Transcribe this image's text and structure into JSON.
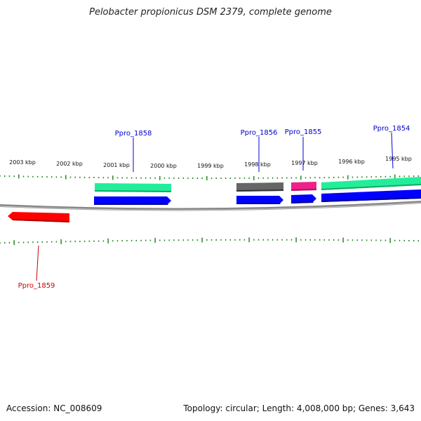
{
  "title": "Pelobacter propionicus DSM 2379, complete genome",
  "footer": {
    "accession": "Accession: NC_008609",
    "summary": "Topology: circular; Length: 4,008,000 bp; Genes: 3,643"
  },
  "scale_labels": [
    "2003 kbp",
    "2002 kbp",
    "2001 kbp",
    "2000 kbp",
    "1999 kbp",
    "1998 kbp",
    "1997 kbp",
    "1996 kbp",
    "1995 kbp"
  ],
  "gene_labels": [
    {
      "id": "ppro-1858",
      "text": "Ppro_1858",
      "color": "#0000cc"
    },
    {
      "id": "ppro-1856",
      "text": "Ppro_1856",
      "color": "#0000cc"
    },
    {
      "id": "ppro-1855",
      "text": "Ppro_1855",
      "color": "#0000cc"
    },
    {
      "id": "ppro-1854",
      "text": "Ppro_1854",
      "color": "#0000cc"
    },
    {
      "id": "ppro-1859",
      "text": "Ppro_1859",
      "color": "#cc0000"
    }
  ],
  "colors": {
    "tick": "#228b22",
    "backbone": "#888888",
    "forward_gene": "#0000ff",
    "reverse_gene": "#ff0000",
    "feature_green": "#22ee99",
    "feature_gray": "#666666",
    "feature_pink": "#ee2288"
  }
}
